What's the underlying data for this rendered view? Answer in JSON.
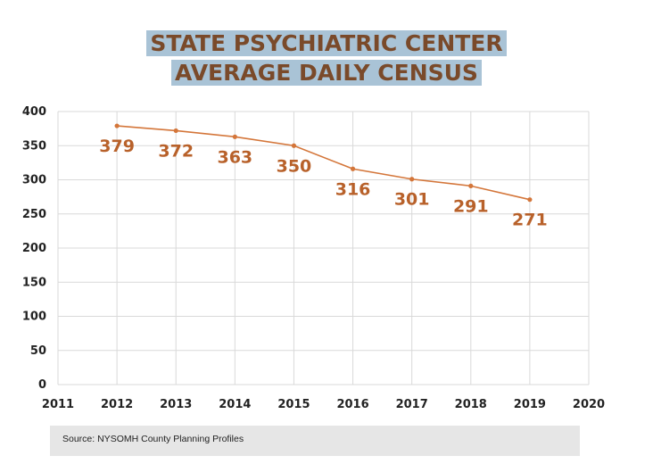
{
  "title": {
    "line1": "STATE PSYCHIATRIC CENTER",
    "line2": "AVERAGE DAILY CENSUS"
  },
  "source": "Source: NYSOMH County Planning Profiles",
  "colors": {
    "series": "#d4763a",
    "label": "#b8612a",
    "grid": "#d9d9d9",
    "title_bg": "#a9c3d6",
    "title_text": "#7a4a2a"
  },
  "chart_data": {
    "type": "line",
    "title": "STATE PSYCHIATRIC CENTER AVERAGE DAILY CENSUS",
    "xlabel": "",
    "ylabel": "",
    "x": [
      2012,
      2013,
      2014,
      2015,
      2016,
      2017,
      2018,
      2019
    ],
    "series": [
      {
        "name": "Average Daily Census",
        "values": [
          379,
          372,
          363,
          350,
          316,
          301,
          291,
          271
        ]
      }
    ],
    "data_labels": [
      "379",
      "372",
      "363",
      "350",
      "316",
      "301",
      "291",
      "271"
    ],
    "xlim": [
      2011,
      2020
    ],
    "ylim": [
      0,
      400
    ],
    "x_ticks": [
      2011,
      2012,
      2013,
      2014,
      2015,
      2016,
      2017,
      2018,
      2019,
      2020
    ],
    "y_ticks": [
      0,
      50,
      100,
      150,
      200,
      250,
      300,
      350,
      400
    ],
    "grid": true
  }
}
